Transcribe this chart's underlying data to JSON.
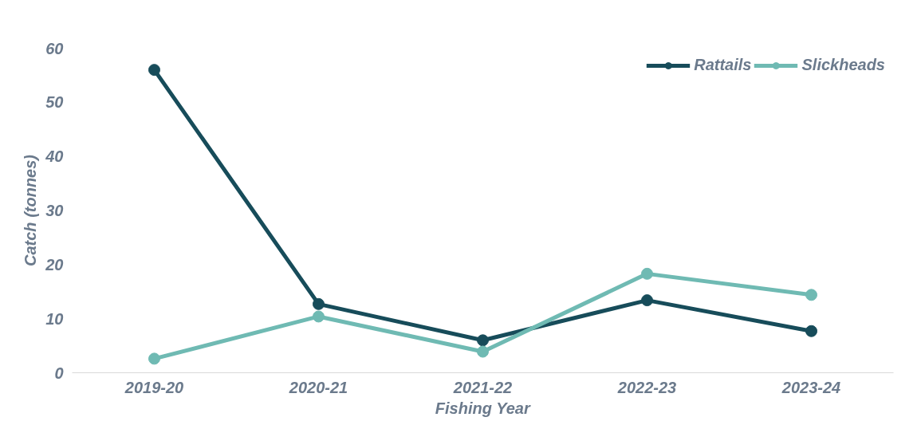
{
  "chart_data": {
    "type": "line",
    "xlabel": "Fishing Year",
    "ylabel": "Catch (tonnes)",
    "categories": [
      "2019-20",
      "2020-21",
      "2021-22",
      "2022-23",
      "2023-24"
    ],
    "series": [
      {
        "name": "Rattails",
        "color": "#174c5a",
        "values": [
          56,
          12.7,
          6,
          13.4,
          7.7
        ]
      },
      {
        "name": "Slickheads",
        "color": "#6fbab3",
        "values": [
          2.6,
          10.4,
          3.9,
          18.3,
          14.4
        ]
      }
    ],
    "ylim": [
      0,
      60
    ],
    "yticks": [
      0,
      10,
      20,
      30,
      40,
      50,
      60
    ],
    "grid": false,
    "legend": "top right",
    "marker": "circle",
    "line_style": "solid"
  }
}
